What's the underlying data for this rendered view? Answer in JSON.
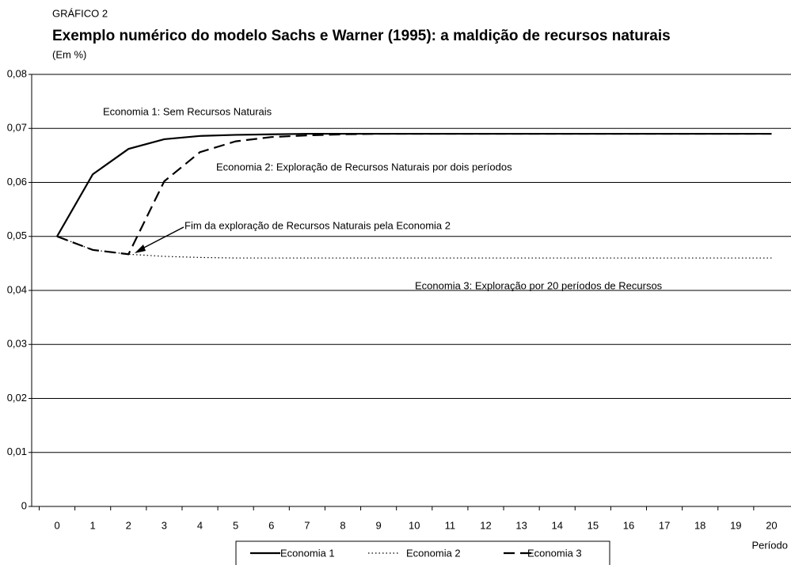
{
  "chart_data": {
    "type": "line",
    "kicker": "GRÁFICO 2",
    "title": "Exemplo numérico do modelo Sachs e Warner (1995): a maldição de recursos naturais",
    "subtitle": "(Em %)",
    "x_label": "Período",
    "categories": [
      0,
      1,
      2,
      3,
      4,
      5,
      6,
      7,
      8,
      9,
      10,
      11,
      12,
      13,
      14,
      15,
      16,
      17,
      18,
      19,
      20
    ],
    "series": [
      {
        "name": "Economia 1",
        "color": "#000000",
        "style": "solid",
        "values": [
          0.05,
          0.0615,
          0.0662,
          0.068,
          0.0686,
          0.0688,
          0.0689,
          0.069,
          0.069,
          0.069,
          0.069,
          0.069,
          0.069,
          0.069,
          0.069,
          0.069,
          0.069,
          0.069,
          0.069,
          0.069,
          0.069
        ]
      },
      {
        "name": "Economia 2",
        "color": "#000000",
        "style": "dotted",
        "values": [
          0.05,
          0.0475,
          0.0467,
          0.0463,
          0.0461,
          0.046,
          0.046,
          0.046,
          0.046,
          0.046,
          0.046,
          0.046,
          0.046,
          0.046,
          0.046,
          0.046,
          0.046,
          0.046,
          0.046,
          0.046,
          0.046
        ]
      },
      {
        "name": "Economia 3",
        "color": "#000000",
        "style": "dashed",
        "values": [
          0.05,
          0.0475,
          0.0467,
          0.0602,
          0.0656,
          0.0676,
          0.0684,
          0.0687,
          0.0689,
          0.069,
          0.069,
          0.069,
          0.069,
          0.069,
          0.069,
          0.069,
          0.069,
          0.069,
          0.069,
          0.069,
          0.069
        ]
      }
    ],
    "ylim": [
      0,
      0.08
    ],
    "yticks": [
      0,
      {
        "value": 0.01,
        "label": "0,01"
      },
      {
        "value": 0.02,
        "label": "0,02"
      },
      {
        "value": 0.03,
        "label": "0,03"
      },
      {
        "value": 0.04,
        "label": "0,04"
      },
      {
        "value": 0.05,
        "label": "0,05"
      },
      {
        "value": 0.06,
        "label": "0,06"
      },
      {
        "value": 0.07,
        "label": "0,07"
      },
      {
        "value": 0.08,
        "label": "0,08"
      }
    ],
    "grid": true,
    "legend": "bottom",
    "annotations": [
      "Economia 1: Sem Recursos Naturais",
      "Economia 2: Exploração de Recursos Naturais por dois períodos",
      "Fim da exploração de Recursos Naturais pela Economia 2",
      "Economia 3: Exploração por 20 períodos de Recursos"
    ]
  }
}
